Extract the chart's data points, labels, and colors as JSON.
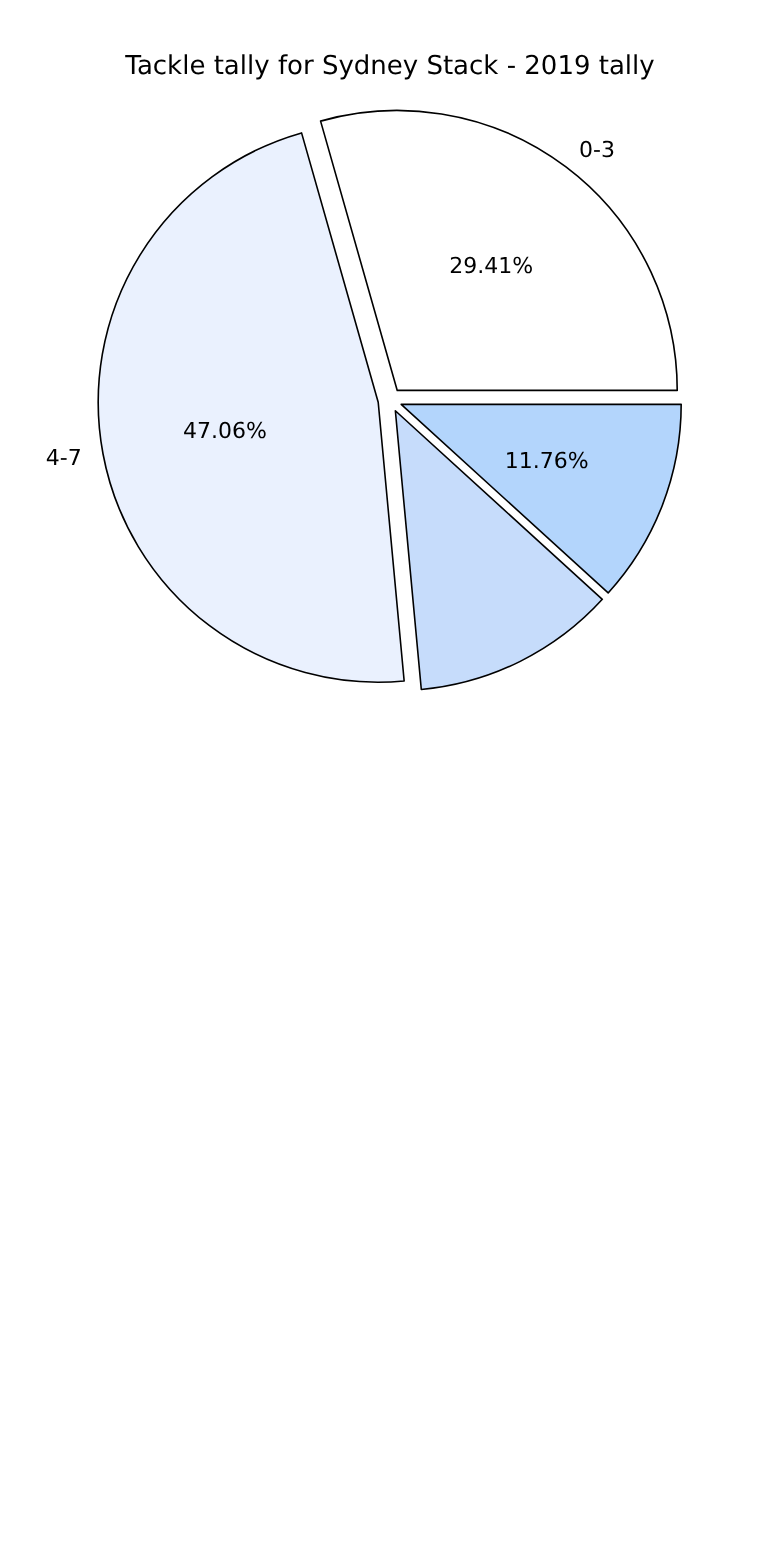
{
  "chart_data": {
    "type": "pie",
    "title": "Tackle tally for Sydney Stack - 2019 tally",
    "categories": [
      "0-3",
      "4-7",
      null,
      null
    ],
    "values": [
      29.41,
      47.06,
      11.76,
      11.76
    ],
    "value_labels": [
      "29.41%",
      "47.06%",
      null,
      "11.76%"
    ],
    "colors": [
      "#ffffff",
      "#eaf1fe",
      "#c6dcfb",
      "#b3d5fc"
    ],
    "legend": false
  }
}
